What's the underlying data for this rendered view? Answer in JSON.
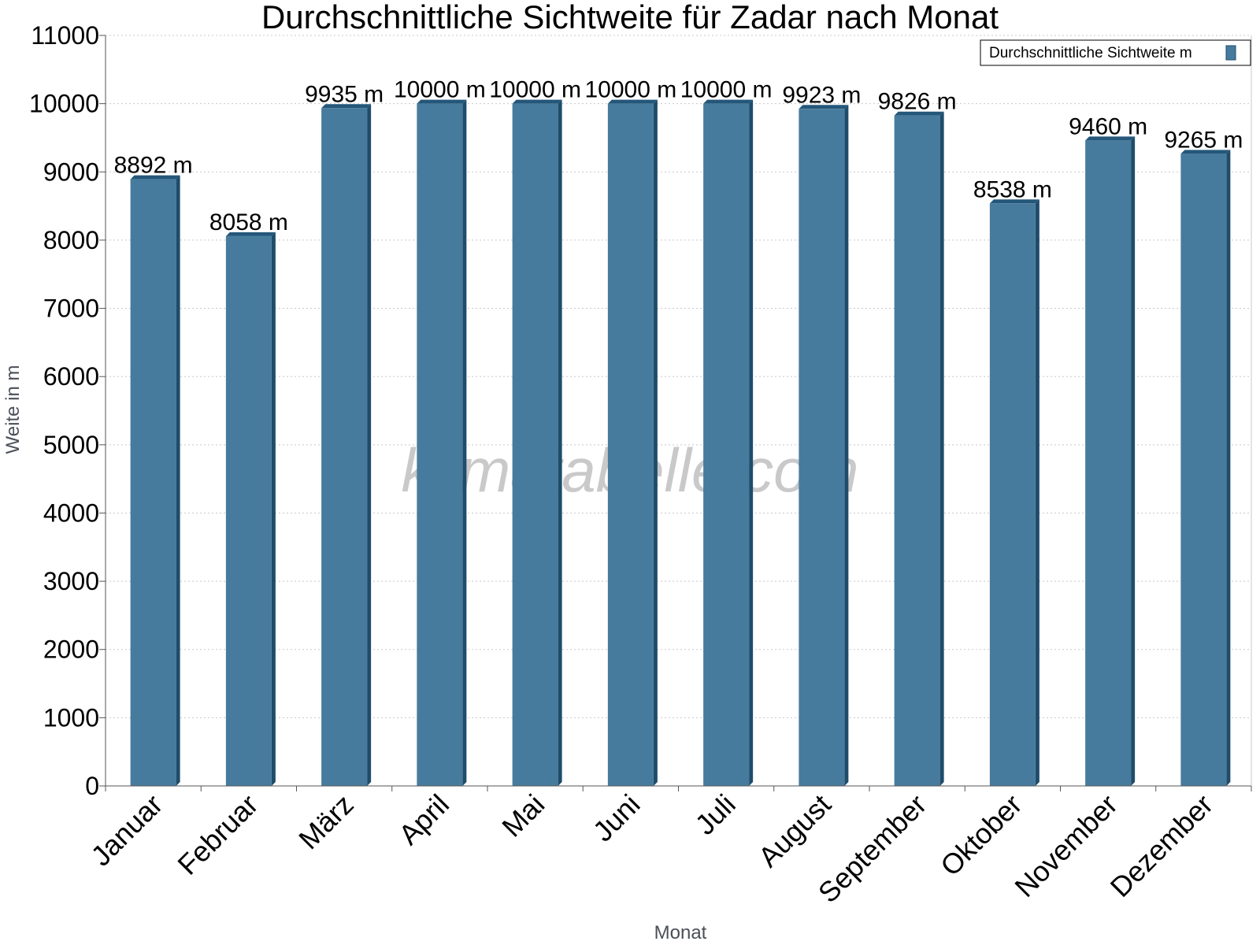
{
  "colors": {
    "bar_front": "#467b9d",
    "bar_side": "#1f4c6b",
    "bar_top": "#24577a",
    "grid": "#c8c8c8",
    "axis": "#555555"
  },
  "watermark": "klimatabelle.com",
  "chart_data": {
    "type": "bar",
    "title": "Durchschnittliche Sichtweite für Zadar nach Monat",
    "xlabel": "Monat",
    "ylabel": "Weite in m",
    "ylim": [
      0,
      11000
    ],
    "yticks": [
      0,
      1000,
      2000,
      3000,
      4000,
      5000,
      6000,
      7000,
      8000,
      9000,
      10000,
      11000
    ],
    "grid": true,
    "legend_position": "top-right",
    "unit_suffix": " m",
    "categories": [
      "Januar",
      "Februar",
      "März",
      "April",
      "Mai",
      "Juni",
      "Juli",
      "August",
      "September",
      "Oktober",
      "November",
      "Dezember"
    ],
    "series": [
      {
        "name": "Durchschnittliche Sichtweite m",
        "values": [
          8892,
          8058,
          9935,
          10000,
          10000,
          10000,
          10000,
          9923,
          9826,
          8538,
          9460,
          9265
        ]
      }
    ]
  }
}
